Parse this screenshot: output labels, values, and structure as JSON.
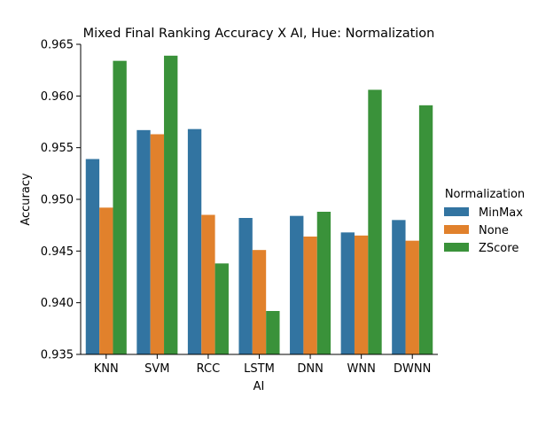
{
  "chart_data": {
    "type": "bar",
    "title": "Mixed Final Ranking Accuracy X AI, Hue: Normalization",
    "xlabel": "AI",
    "ylabel": "Accuracy",
    "ylim": [
      0.935,
      0.965
    ],
    "yticks": [
      "0.935",
      "0.940",
      "0.945",
      "0.950",
      "0.955",
      "0.960",
      "0.965"
    ],
    "categories": [
      "KNN",
      "SVM",
      "RCC",
      "LSTM",
      "DNN",
      "WNN",
      "DWNN"
    ],
    "legend_title": "Normalization",
    "legend_position": "right",
    "grid": false,
    "series": [
      {
        "name": "MinMax",
        "color": "#3274a1",
        "values": [
          0.9539,
          0.9567,
          0.9568,
          0.9482,
          0.9484,
          0.9468,
          0.948
        ]
      },
      {
        "name": "None",
        "color": "#e1812c",
        "values": [
          0.9492,
          0.9563,
          0.9485,
          0.9451,
          0.9464,
          0.9465,
          0.946
        ]
      },
      {
        "name": "ZScore",
        "color": "#3a923a",
        "values": [
          0.9634,
          0.9639,
          0.9438,
          0.9392,
          0.9488,
          0.9606,
          0.9591
        ]
      }
    ]
  }
}
